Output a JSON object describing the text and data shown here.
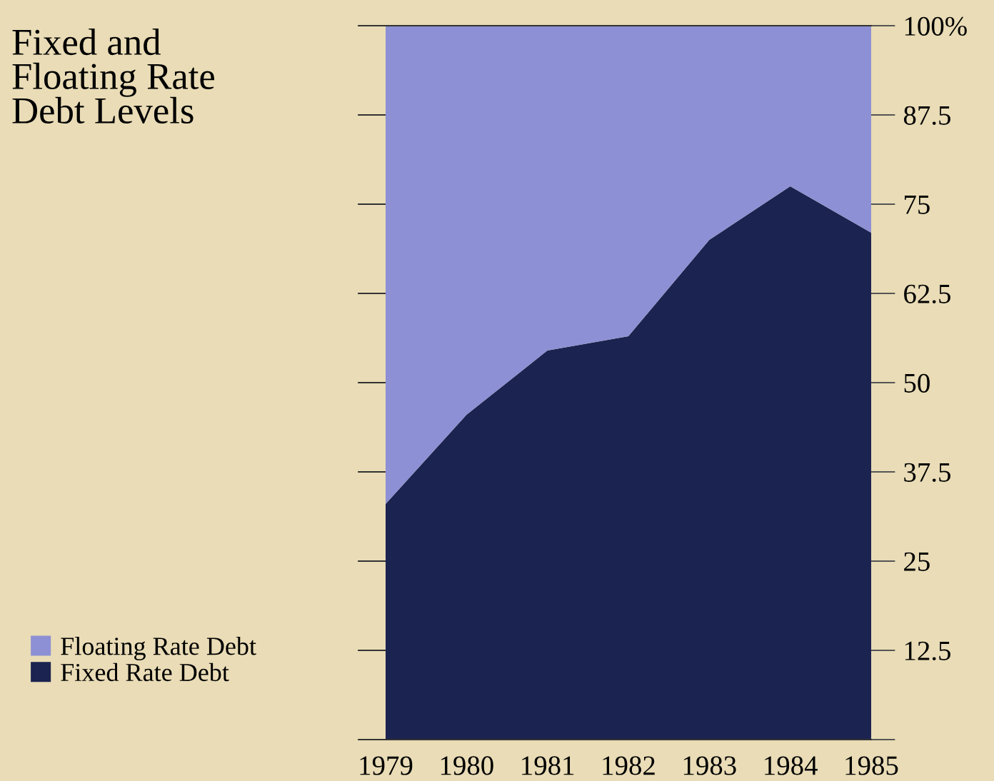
{
  "chart_data": {
    "type": "area",
    "stacked": true,
    "title": "Fixed and\nFloating Rate\nDebt Levels",
    "categories": [
      "1979",
      "1980",
      "1981",
      "1982",
      "1983",
      "1984",
      "1985"
    ],
    "series": [
      {
        "name": "Fixed Rate Debt",
        "color": "#1b2350",
        "values": [
          33,
          45.5,
          54.5,
          56.5,
          70,
          77.5,
          71
        ]
      },
      {
        "name": "Floating Rate Debt",
        "color": "#8d90d4",
        "values": [
          67,
          54.5,
          45.5,
          43.5,
          30,
          22.5,
          29
        ]
      }
    ],
    "ylim": [
      0,
      100
    ],
    "yticks": [
      {
        "value": 0,
        "label": null
      },
      12.5,
      25,
      37.5,
      50,
      62.5,
      75,
      87.5,
      {
        "value": 100,
        "label": "100%"
      }
    ],
    "grid": false,
    "legend": "bottom left"
  }
}
